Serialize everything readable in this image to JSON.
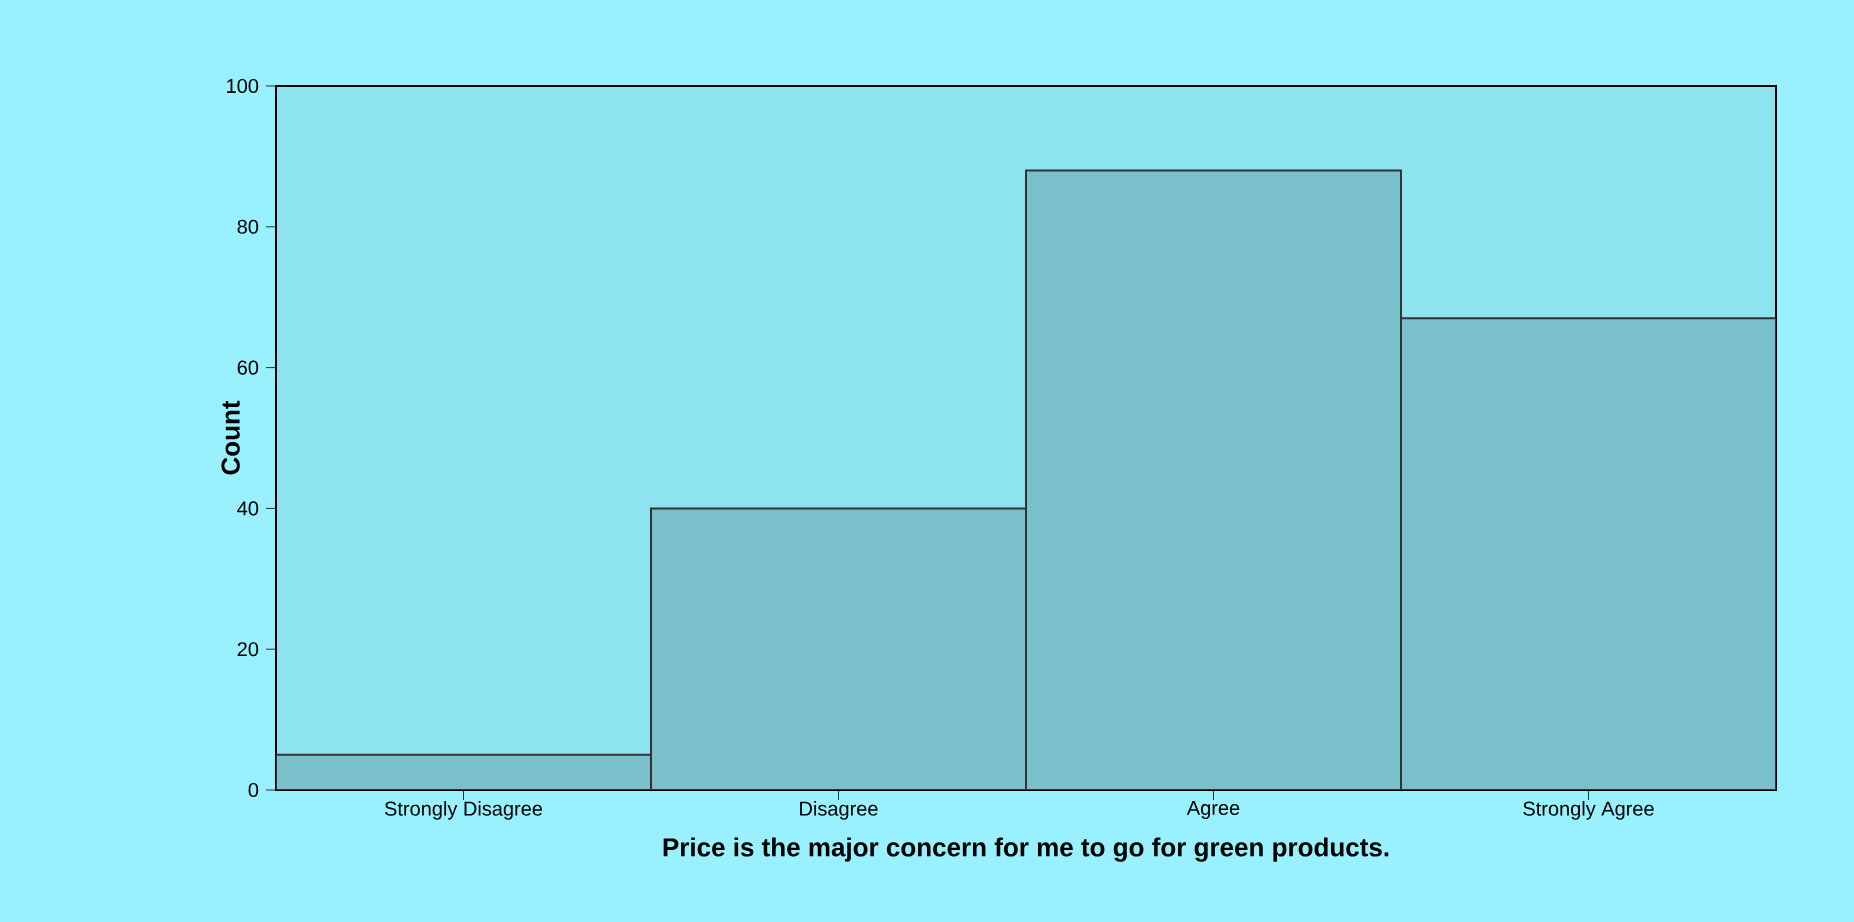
{
  "chart_data": {
    "type": "bar",
    "xlabel": "Price is the major concern for me to go for green products.",
    "ylabel": "Count",
    "categories": [
      "Strongly Disagree",
      "Disagree",
      "Agree",
      "Strongly Agree"
    ],
    "values": [
      5,
      40,
      88,
      67
    ],
    "color": "#79c0ca",
    "ylim": [
      0,
      100
    ],
    "yticks": [
      0,
      20,
      40,
      60,
      80,
      100
    ]
  }
}
